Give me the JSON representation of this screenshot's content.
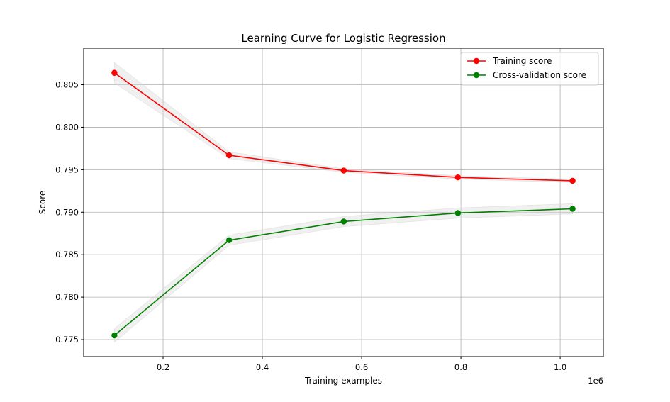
{
  "chart_data": {
    "type": "line",
    "title": "Learning Curve for Logistic Regression",
    "xlabel": "Training examples",
    "ylabel": "Score",
    "x_offset_label": "1e6",
    "x_scale": 1000000,
    "x": [
      102000,
      333000,
      564000,
      794000,
      1025000
    ],
    "xlim": [
      40000,
      1087000
    ],
    "ylim": [
      0.773,
      0.8093
    ],
    "xticks": [
      200000,
      400000,
      600000,
      800000,
      1000000
    ],
    "xtick_labels": [
      "0.2",
      "0.4",
      "0.6",
      "0.8",
      "1.0"
    ],
    "yticks": [
      0.775,
      0.78,
      0.785,
      0.79,
      0.795,
      0.8,
      0.805
    ],
    "ytick_labels": [
      "0.775",
      "0.780",
      "0.785",
      "0.790",
      "0.795",
      "0.800",
      "0.805"
    ],
    "grid": true,
    "legend_position": "top-right",
    "band_color": "#d3d3d3",
    "series": [
      {
        "name": "Training score",
        "color": "#ff0000",
        "marker": "circle",
        "values": [
          0.8064,
          0.7967,
          0.7949,
          0.7941,
          0.7937
        ],
        "std": [
          0.0012,
          0.0004,
          0.0002,
          0.0002,
          0.0002
        ]
      },
      {
        "name": "Cross-validation score",
        "color": "#008000",
        "marker": "circle",
        "values": [
          0.7755,
          0.7867,
          0.7889,
          0.7899,
          0.7904
        ],
        "std": [
          0.0008,
          0.0006,
          0.0006,
          0.0006,
          0.0006
        ]
      }
    ]
  }
}
